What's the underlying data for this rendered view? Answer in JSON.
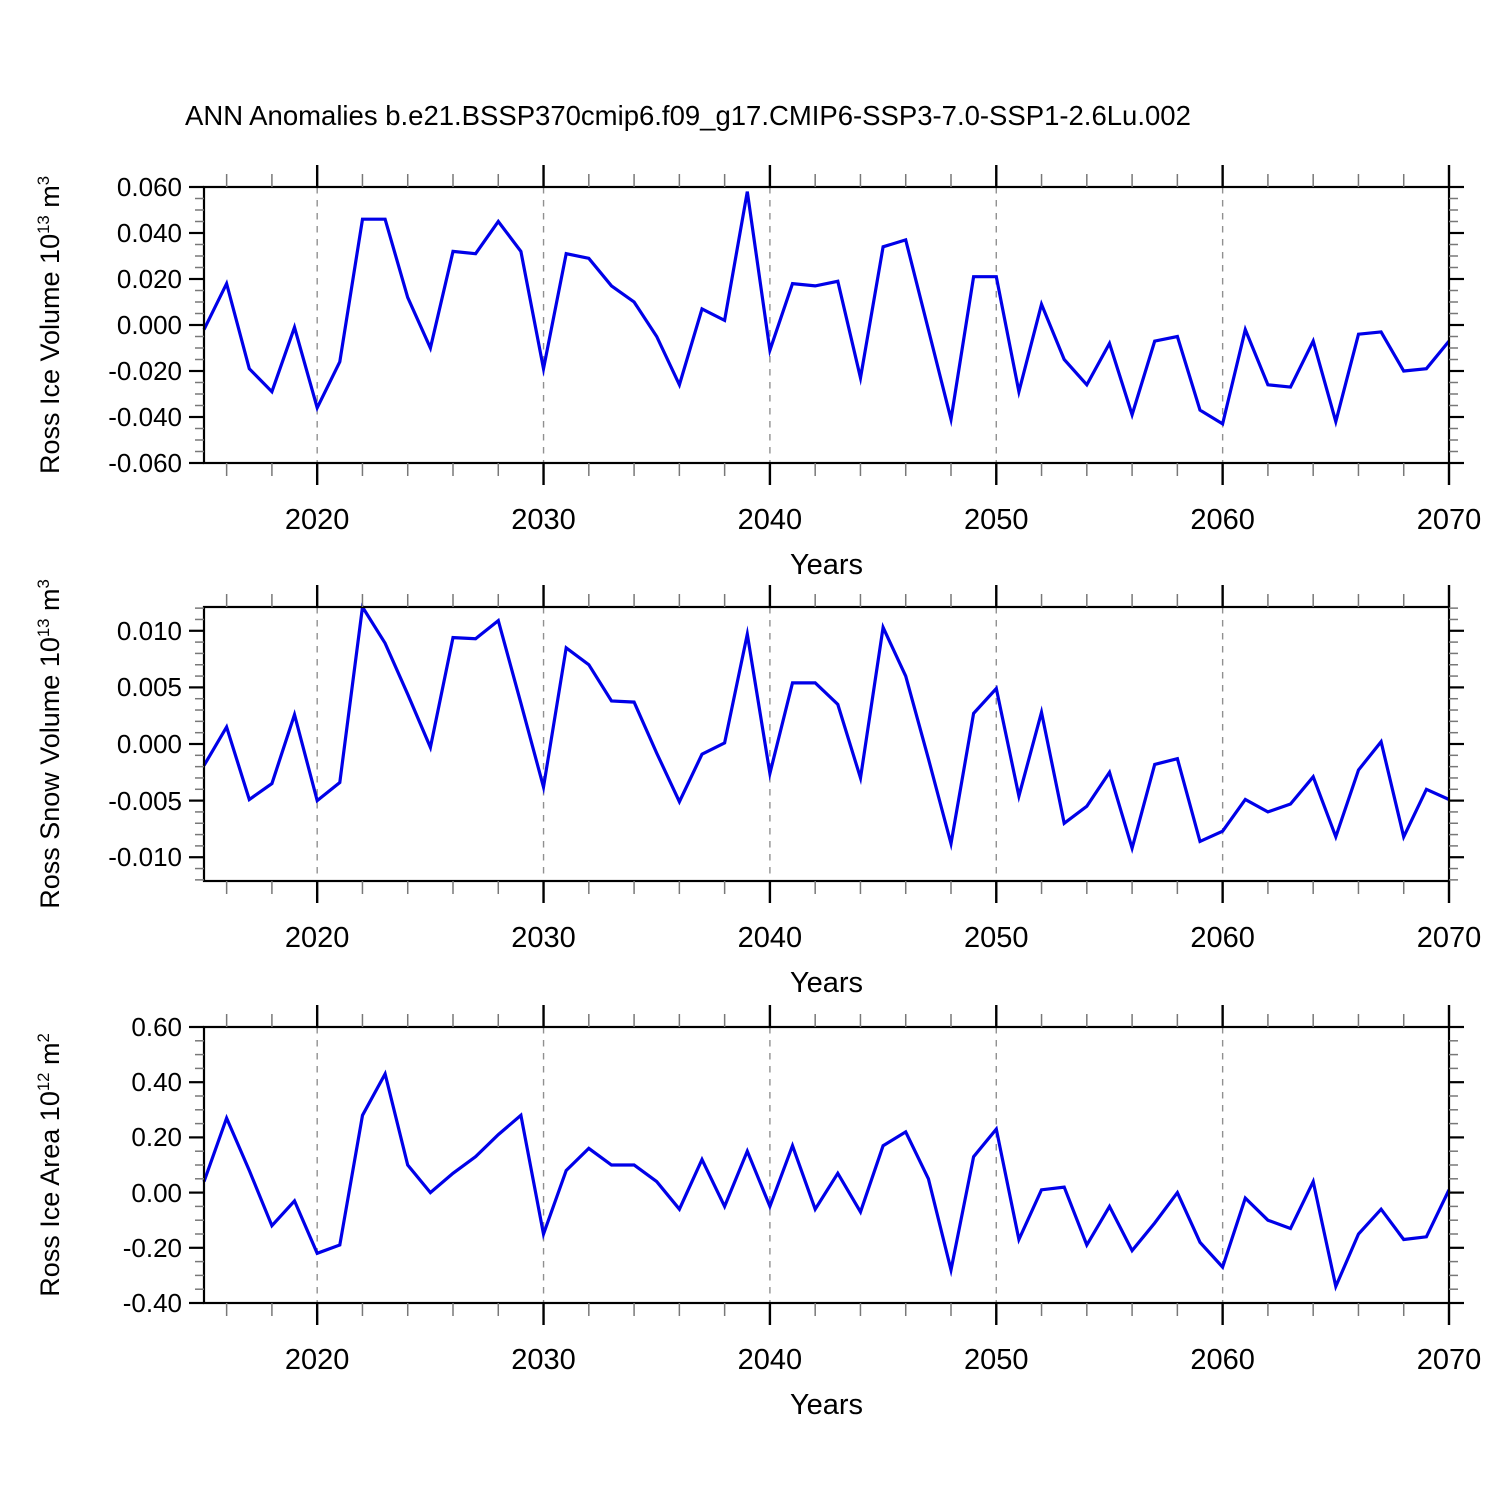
{
  "title": "ANN Anomalies b.e21.BSSP370cmip6.f09_g17.CMIP6-SSP3-7.0-SSP1-2.6Lu.002",
  "chart_data": {
    "type": "line",
    "line_color": "#0000e8",
    "gridline_color": "#909090",
    "x_label": "Years",
    "x_range": [
      2015,
      2070
    ],
    "years": [
      2015,
      2016,
      2017,
      2018,
      2019,
      2020,
      2021,
      2022,
      2023,
      2024,
      2025,
      2026,
      2027,
      2028,
      2029,
      2030,
      2031,
      2032,
      2033,
      2034,
      2035,
      2036,
      2037,
      2038,
      2039,
      2040,
      2041,
      2042,
      2043,
      2044,
      2045,
      2046,
      2047,
      2048,
      2049,
      2050,
      2051,
      2052,
      2053,
      2054,
      2055,
      2056,
      2057,
      2058,
      2059,
      2060,
      2061,
      2062,
      2063,
      2064,
      2065,
      2066,
      2067,
      2068,
      2069,
      2070
    ],
    "x_major_ticks": [
      2020,
      2030,
      2040,
      2050,
      2060,
      2070
    ],
    "x_major_tick_labels": [
      "2020",
      "2030",
      "2040",
      "2050",
      "2060",
      "2070"
    ],
    "x_minor_step": 2,
    "x_gridlines": [
      2020,
      2030,
      2040,
      2050,
      2060
    ],
    "panels": [
      {
        "id": "ross-ice-volume",
        "ylabel_base": "Ross Ice Volume 10",
        "ylabel_exp": "13",
        "ylabel_unit": " m",
        "ylabel_unit_exp": "3",
        "y_range": [
          -0.06,
          0.06
        ],
        "y_tick_values": [
          0.06,
          0.04,
          0.02,
          0,
          -0.02,
          -0.04,
          -0.06
        ],
        "y_tick_labels": [
          "0.060",
          "0.040",
          "0.020",
          "0.000",
          "-0.020",
          "-0.040",
          "-0.060"
        ],
        "y_minor_step": 0.005,
        "values": [
          -0.002,
          0.018,
          -0.019,
          -0.029,
          -0.001,
          -0.036,
          -0.016,
          0.046,
          0.046,
          0.012,
          -0.01,
          0.032,
          0.031,
          0.045,
          0.032,
          -0.019,
          0.031,
          0.029,
          0.017,
          0.01,
          -0.005,
          -0.026,
          0.007,
          0.002,
          0.058,
          -0.011,
          0.018,
          0.017,
          0.019,
          -0.023,
          0.034,
          0.037,
          -0.002,
          -0.041,
          0.021,
          0.021,
          -0.029,
          0.009,
          -0.015,
          -0.026,
          -0.008,
          -0.039,
          -0.007,
          -0.005,
          -0.037,
          -0.043,
          -0.002,
          -0.026,
          -0.027,
          -0.007,
          -0.042,
          -0.004,
          -0.003,
          -0.02,
          -0.019,
          -0.007
        ]
      },
      {
        "id": "ross-snow-volume",
        "ylabel_base": "Ross Snow Volume 10",
        "ylabel_exp": "13",
        "ylabel_unit": " m",
        "ylabel_unit_exp": "3",
        "y_range": [
          -0.0121,
          0.0121
        ],
        "y_tick_values": [
          0.01,
          0.005,
          0,
          -0.005,
          -0.01
        ],
        "y_tick_labels": [
          "0.010",
          "0.005",
          "0.000",
          "-0.005",
          "-0.010"
        ],
        "y_minor_step": 0.001,
        "values": [
          -0.0019,
          0.0015,
          -0.0049,
          -0.0035,
          0.0026,
          -0.005,
          -0.0034,
          0.0121,
          0.0089,
          0.0044,
          -0.0003,
          0.0094,
          0.0093,
          0.0109,
          0.0036,
          -0.0038,
          0.0085,
          0.007,
          0.0038,
          0.0037,
          -0.0008,
          -0.0051,
          -0.0009,
          0.0001,
          0.0097,
          -0.0026,
          0.0054,
          0.0054,
          0.0035,
          -0.003,
          0.0103,
          0.006,
          -0.0013,
          -0.0088,
          0.0027,
          0.0049,
          -0.0046,
          0.0028,
          -0.007,
          -0.0055,
          -0.0025,
          -0.0092,
          -0.0018,
          -0.0013,
          -0.0086,
          -0.0077,
          -0.0049,
          -0.006,
          -0.0053,
          -0.0029,
          -0.0082,
          -0.0023,
          0.0002,
          -0.0082,
          -0.004,
          -0.0049
        ]
      },
      {
        "id": "ross-ice-area",
        "ylabel_base": "Ross Ice Area 10",
        "ylabel_exp": "12",
        "ylabel_unit": " m",
        "ylabel_unit_exp": "2",
        "y_range": [
          -0.4,
          0.6
        ],
        "y_tick_values": [
          0.6,
          0.4,
          0.2,
          0,
          -0.2,
          -0.4
        ],
        "y_tick_labels": [
          "0.60",
          "0.40",
          "0.20",
          "0.00",
          "-0.20",
          "-0.40"
        ],
        "y_minor_step": 0.05,
        "values": [
          0.04,
          0.27,
          0.08,
          -0.12,
          -0.03,
          -0.22,
          -0.19,
          0.28,
          0.43,
          0.1,
          0.0,
          0.07,
          0.13,
          0.21,
          0.28,
          -0.15,
          0.08,
          0.16,
          0.1,
          0.1,
          0.04,
          -0.06,
          0.12,
          -0.05,
          0.15,
          -0.05,
          0.17,
          -0.06,
          0.07,
          -0.07,
          0.17,
          0.22,
          0.05,
          -0.28,
          0.13,
          0.23,
          -0.17,
          0.01,
          0.02,
          -0.19,
          -0.05,
          -0.21,
          -0.11,
          0.0,
          -0.18,
          -0.27,
          -0.02,
          -0.1,
          -0.13,
          0.04,
          -0.34,
          -0.15,
          -0.06,
          -0.17,
          -0.16,
          0.01
        ]
      }
    ]
  }
}
